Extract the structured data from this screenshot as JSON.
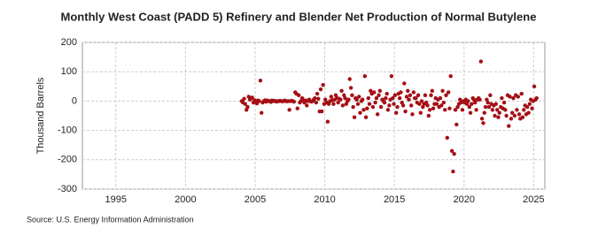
{
  "chart_data": {
    "type": "scatter",
    "title": "Monthly West Coast (PADD 5) Refinery and Blender Net Production of Normal Butylene",
    "y_label": "Thousand Barrels",
    "source": "Source: U.S. Energy Information Administration",
    "color": "#a50f15",
    "grid": true,
    "xlim": [
      1992.6,
      2025.8
    ],
    "xticks": [
      1995,
      2000,
      2005,
      2010,
      2015,
      2020,
      2025
    ],
    "ylim": [
      -300,
      200
    ],
    "yticks": [
      -300,
      -200,
      -100,
      0,
      100,
      200
    ],
    "x": [
      2004.04,
      2004.13,
      2004.21,
      2004.29,
      2004.38,
      2004.46,
      2004.54,
      2004.63,
      2004.71,
      2004.79,
      2004.88,
      2004.96,
      2005.04,
      2005.13,
      2005.21,
      2005.29,
      2005.38,
      2005.46,
      2005.54,
      2005.63,
      2005.71,
      2005.79,
      2005.88,
      2005.96,
      2006.04,
      2006.13,
      2006.21,
      2006.29,
      2006.38,
      2006.46,
      2006.54,
      2006.63,
      2006.71,
      2006.79,
      2006.88,
      2006.96,
      2007.04,
      2007.13,
      2007.21,
      2007.29,
      2007.38,
      2007.46,
      2007.54,
      2007.63,
      2007.71,
      2007.79,
      2007.88,
      2007.96,
      2008.04,
      2008.13,
      2008.21,
      2008.29,
      2008.38,
      2008.46,
      2008.54,
      2008.63,
      2008.71,
      2008.79,
      2008.88,
      2008.96,
      2009.04,
      2009.13,
      2009.21,
      2009.29,
      2009.38,
      2009.46,
      2009.54,
      2009.63,
      2009.71,
      2009.79,
      2009.88,
      2009.96,
      2010.04,
      2010.13,
      2010.21,
      2010.29,
      2010.38,
      2010.46,
      2010.54,
      2010.63,
      2010.71,
      2010.79,
      2010.88,
      2010.96,
      2011.04,
      2011.13,
      2011.21,
      2011.29,
      2011.38,
      2011.46,
      2011.54,
      2011.63,
      2011.71,
      2011.79,
      2011.88,
      2011.96,
      2012.04,
      2012.13,
      2012.21,
      2012.29,
      2012.38,
      2012.46,
      2012.54,
      2012.63,
      2012.71,
      2012.79,
      2012.88,
      2012.96,
      2013.04,
      2013.13,
      2013.21,
      2013.29,
      2013.38,
      2013.46,
      2013.54,
      2013.63,
      2013.71,
      2013.79,
      2013.88,
      2013.96,
      2014.04,
      2014.13,
      2014.21,
      2014.29,
      2014.38,
      2014.46,
      2014.54,
      2014.63,
      2014.71,
      2014.79,
      2014.88,
      2014.96,
      2015.04,
      2015.13,
      2015.21,
      2015.29,
      2015.38,
      2015.46,
      2015.54,
      2015.63,
      2015.71,
      2015.79,
      2015.88,
      2015.96,
      2016.04,
      2016.13,
      2016.21,
      2016.29,
      2016.38,
      2016.46,
      2016.54,
      2016.63,
      2016.71,
      2016.79,
      2016.88,
      2016.96,
      2017.04,
      2017.13,
      2017.21,
      2017.29,
      2017.38,
      2017.46,
      2017.54,
      2017.63,
      2017.71,
      2017.79,
      2017.88,
      2017.96,
      2018.04,
      2018.13,
      2018.21,
      2018.29,
      2018.38,
      2018.46,
      2018.54,
      2018.63,
      2018.71,
      2018.79,
      2018.88,
      2018.96,
      2019.04,
      2019.13,
      2019.21,
      2019.29,
      2019.38,
      2019.46,
      2019.54,
      2019.63,
      2019.71,
      2019.79,
      2019.88,
      2019.96,
      2020.04,
      2020.13,
      2020.21,
      2020.29,
      2020.38,
      2020.46,
      2020.54,
      2020.63,
      2020.71,
      2020.79,
      2020.88,
      2020.96,
      2021.04,
      2021.13,
      2021.21,
      2021.29,
      2021.38,
      2021.46,
      2021.54,
      2021.63,
      2021.71,
      2021.79,
      2021.88,
      2021.96,
      2022.04,
      2022.13,
      2022.21,
      2022.29,
      2022.38,
      2022.46,
      2022.54,
      2022.63,
      2022.71,
      2022.79,
      2022.88,
      2022.96,
      2023.04,
      2023.13,
      2023.21,
      2023.29,
      2023.38,
      2023.46,
      2023.54,
      2023.63,
      2023.71,
      2023.79,
      2023.88,
      2023.96,
      2024.04,
      2024.13,
      2024.21,
      2024.29,
      2024.38,
      2024.46,
      2024.54,
      2024.63,
      2024.71,
      2024.79,
      2024.88,
      2024.96,
      2025.04,
      2025.13,
      2025.21
    ],
    "values": [
      0,
      -5,
      8,
      -10,
      -30,
      -20,
      15,
      5,
      10,
      12,
      -5,
      3,
      0,
      -8,
      2,
      0,
      70,
      -40,
      -5,
      0,
      3,
      -2,
      2,
      0,
      0,
      -3,
      2,
      0,
      1,
      0,
      -2,
      0,
      0,
      1,
      0,
      -1,
      0,
      2,
      0,
      -1,
      0,
      -30,
      0,
      1,
      0,
      -2,
      30,
      25,
      -25,
      20,
      -5,
      0,
      10,
      3,
      -5,
      2,
      -15,
      0,
      5,
      0,
      -2,
      0,
      5,
      10,
      -5,
      25,
      8,
      -35,
      40,
      -35,
      55,
      -10,
      5,
      -5,
      -70,
      -10,
      0,
      15,
      3,
      -10,
      5,
      20,
      10,
      -5,
      8,
      5,
      35,
      -15,
      20,
      10,
      -10,
      0,
      5,
      75,
      45,
      20,
      -20,
      -55,
      10,
      5,
      -10,
      15,
      -40,
      0,
      5,
      -30,
      85,
      -55,
      -25,
      10,
      -10,
      35,
      25,
      -20,
      30,
      -5,
      10,
      -45,
      20,
      35,
      -20,
      5,
      0,
      -5,
      10,
      25,
      -30,
      -15,
      5,
      85,
      10,
      -10,
      20,
      -40,
      -20,
      25,
      10,
      30,
      -5,
      -15,
      60,
      -35,
      15,
      35,
      5,
      20,
      -15,
      -45,
      30,
      10,
      10,
      -5,
      20,
      -10,
      -40,
      0,
      -20,
      -10,
      20,
      -5,
      -15,
      -50,
      -30,
      20,
      35,
      -25,
      -10,
      10,
      -10,
      5,
      -20,
      10,
      -15,
      35,
      -5,
      -30,
      20,
      -125,
      30,
      -25,
      85,
      -170,
      -240,
      -180,
      -30,
      -80,
      -20,
      -10,
      5,
      -5,
      -30,
      0,
      -5,
      5,
      -10,
      0,
      -20,
      -40,
      -10,
      10,
      5,
      -5,
      -30,
      5,
      10,
      5,
      135,
      -60,
      -75,
      -40,
      -20,
      5,
      -5,
      -20,
      20,
      -10,
      -30,
      -15,
      -50,
      -10,
      -30,
      -55,
      -40,
      -20,
      10,
      -25,
      -5,
      -30,
      -50,
      20,
      -85,
      15,
      -60,
      -40,
      10,
      -50,
      20,
      -30,
      15,
      -45,
      -60,
      25,
      -55,
      -30,
      -15,
      -45,
      -20,
      -40,
      -10,
      5,
      -25,
      0,
      50,
      5,
      10
    ]
  }
}
